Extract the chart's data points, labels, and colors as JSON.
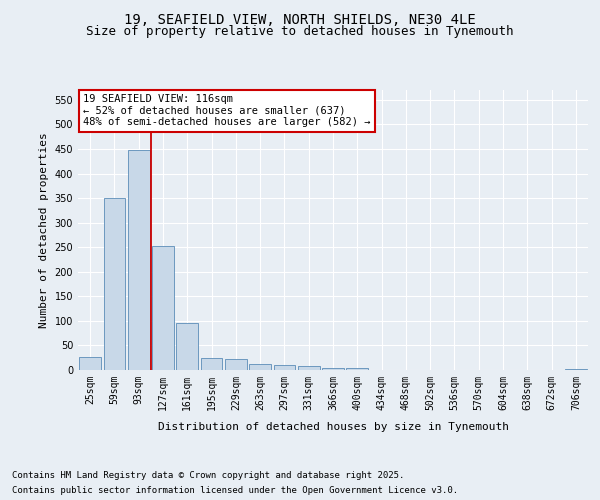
{
  "title_line1": "19, SEAFIELD VIEW, NORTH SHIELDS, NE30 4LE",
  "title_line2": "Size of property relative to detached houses in Tynemouth",
  "xlabel": "Distribution of detached houses by size in Tynemouth",
  "ylabel": "Number of detached properties",
  "categories": [
    "25sqm",
    "59sqm",
    "93sqm",
    "127sqm",
    "161sqm",
    "195sqm",
    "229sqm",
    "263sqm",
    "297sqm",
    "331sqm",
    "366sqm",
    "400sqm",
    "434sqm",
    "468sqm",
    "502sqm",
    "536sqm",
    "570sqm",
    "604sqm",
    "638sqm",
    "672sqm",
    "706sqm"
  ],
  "values": [
    27,
    350,
    448,
    252,
    95,
    24,
    22,
    13,
    11,
    8,
    5,
    4,
    0,
    0,
    0,
    0,
    1,
    0,
    0,
    0,
    3
  ],
  "bar_color": "#c8d8e8",
  "bar_edge_color": "#5b8db8",
  "vline_index": 3,
  "vline_color": "#cc0000",
  "annotation_text": "19 SEAFIELD VIEW: 116sqm\n← 52% of detached houses are smaller (637)\n48% of semi-detached houses are larger (582) →",
  "annotation_box_color": "#ffffff",
  "annotation_box_edge": "#cc0000",
  "ylim": [
    0,
    570
  ],
  "yticks": [
    0,
    50,
    100,
    150,
    200,
    250,
    300,
    350,
    400,
    450,
    500,
    550
  ],
  "background_color": "#e8eef4",
  "plot_bg_color": "#e8eef4",
  "grid_color": "#ffffff",
  "footer_line1": "Contains HM Land Registry data © Crown copyright and database right 2025.",
  "footer_line2": "Contains public sector information licensed under the Open Government Licence v3.0.",
  "title_fontsize": 10,
  "subtitle_fontsize": 9,
  "label_fontsize": 8,
  "tick_fontsize": 7,
  "footer_fontsize": 6.5,
  "annotation_fontsize": 7.5
}
